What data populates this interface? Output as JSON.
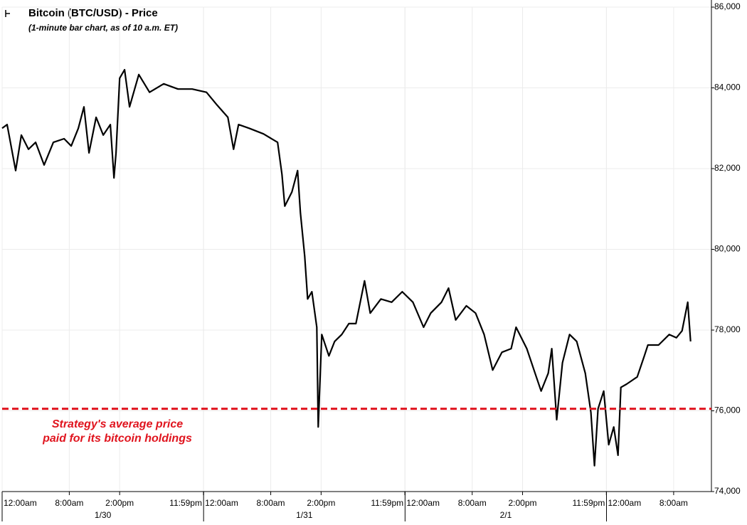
{
  "chart_data": {
    "type": "line",
    "title": "Bitcoin (BTC/USD) - Price",
    "subtitle": "(1-minute bar chart, as of 10 a.m. ET)",
    "x": [
      0,
      0.59,
      1.61,
      2.29,
      3.14,
      3.99,
      5.0,
      6.1,
      7.38,
      8.23,
      9.08,
      9.75,
      10.35,
      11.2,
      12.04,
      12.89,
      13.32,
      13.57,
      14.0,
      14.59,
      15.18,
      16.28,
      17.56,
      19.25,
      20.95,
      22.65,
      24.34,
      25.62,
      26.89,
      27.57,
      28.16,
      29.43,
      31.13,
      32.82,
      33.33,
      33.67,
      34.52,
      35.2,
      35.54,
      36.05,
      36.39,
      36.9,
      37.49,
      37.66,
      38.08,
      38.93,
      39.61,
      40.46,
      41.31,
      42.15,
      43.17,
      43.85,
      45.12,
      46.4,
      47.67,
      48.94,
      50.21,
      51.06,
      52.34,
      53.18,
      54.03,
      55.3,
      56.4,
      57.42,
      58.44,
      59.54,
      60.64,
      61.23,
      62.51,
      63.36,
      64.21,
      65.06,
      65.48,
      66.07,
      66.75,
      67.6,
      68.45,
      69.47,
      70.14,
      70.57,
      70.99,
      71.67,
      72.26,
      72.86,
      73.37,
      73.71,
      74.39,
      75.66,
      76.51,
      76.93,
      78.2,
      79.47,
      80.32,
      81.0,
      81.68,
      82.02
    ],
    "series": [
      {
        "name": "BTC/USD",
        "color": "#000000",
        "values": [
          83000,
          83090,
          81950,
          82830,
          82480,
          82650,
          82090,
          82650,
          82740,
          82560,
          83000,
          83530,
          82390,
          83270,
          82830,
          83090,
          81770,
          82390,
          84240,
          84450,
          83530,
          84330,
          83890,
          84100,
          83970,
          83970,
          83890,
          83570,
          83270,
          82480,
          83090,
          83000,
          82860,
          82650,
          81860,
          81070,
          81420,
          81950,
          80900,
          79830,
          78770,
          78950,
          78070,
          75600,
          77890,
          77360,
          77720,
          77890,
          78160,
          78160,
          79220,
          78420,
          78770,
          78690,
          78950,
          78690,
          78070,
          78420,
          78690,
          79040,
          78250,
          78600,
          78420,
          77890,
          77010,
          77450,
          77540,
          78070,
          77540,
          77010,
          76490,
          76930,
          77540,
          75780,
          77190,
          77890,
          77720,
          76930,
          75960,
          74640,
          76050,
          76490,
          75160,
          75600,
          74900,
          76580,
          76660,
          76840,
          77360,
          77630,
          77630,
          77890,
          77810,
          77980,
          78690,
          77720
        ]
      }
    ],
    "xlim": [
      0,
      84.5
    ],
    "xticks": [
      {
        "value": 0,
        "label": "12:00am"
      },
      {
        "value": 8,
        "label": "8:00am"
      },
      {
        "value": 14,
        "label": "2:00pm"
      },
      {
        "value": 23.983,
        "label": "11:59pm"
      },
      {
        "value": 24,
        "label": "12:00am"
      },
      {
        "value": 32,
        "label": "8:00am"
      },
      {
        "value": 38,
        "label": "2:00pm"
      },
      {
        "value": 47.983,
        "label": "11:59pm"
      },
      {
        "value": 48,
        "label": "12:00am"
      },
      {
        "value": 56,
        "label": "8:00am"
      },
      {
        "value": 62,
        "label": "2:00pm"
      },
      {
        "value": 71.983,
        "label": "11:59pm"
      },
      {
        "value": 72,
        "label": "12:00am"
      },
      {
        "value": 80,
        "label": "8:00am"
      }
    ],
    "day_labels": [
      {
        "value": 12,
        "label": "1/30"
      },
      {
        "value": 36,
        "label": "1/31"
      },
      {
        "value": 60,
        "label": "2/1"
      }
    ],
    "ylim": [
      74000,
      86000
    ],
    "yticks": [
      {
        "value": 74000,
        "label": "74,000"
      },
      {
        "value": 76000,
        "label": "76,000"
      },
      {
        "value": 78000,
        "label": "78,000"
      },
      {
        "value": 80000,
        "label": "80,000"
      },
      {
        "value": 82000,
        "label": "82,000"
      },
      {
        "value": 84000,
        "label": "84,000"
      },
      {
        "value": 86000,
        "label": "86,000"
      }
    ],
    "grid": true,
    "reference_line": {
      "value": 76050,
      "color": "#e0141e",
      "label": [
        "Strategy's average price",
        "paid for its bitcoin holdings"
      ]
    }
  }
}
